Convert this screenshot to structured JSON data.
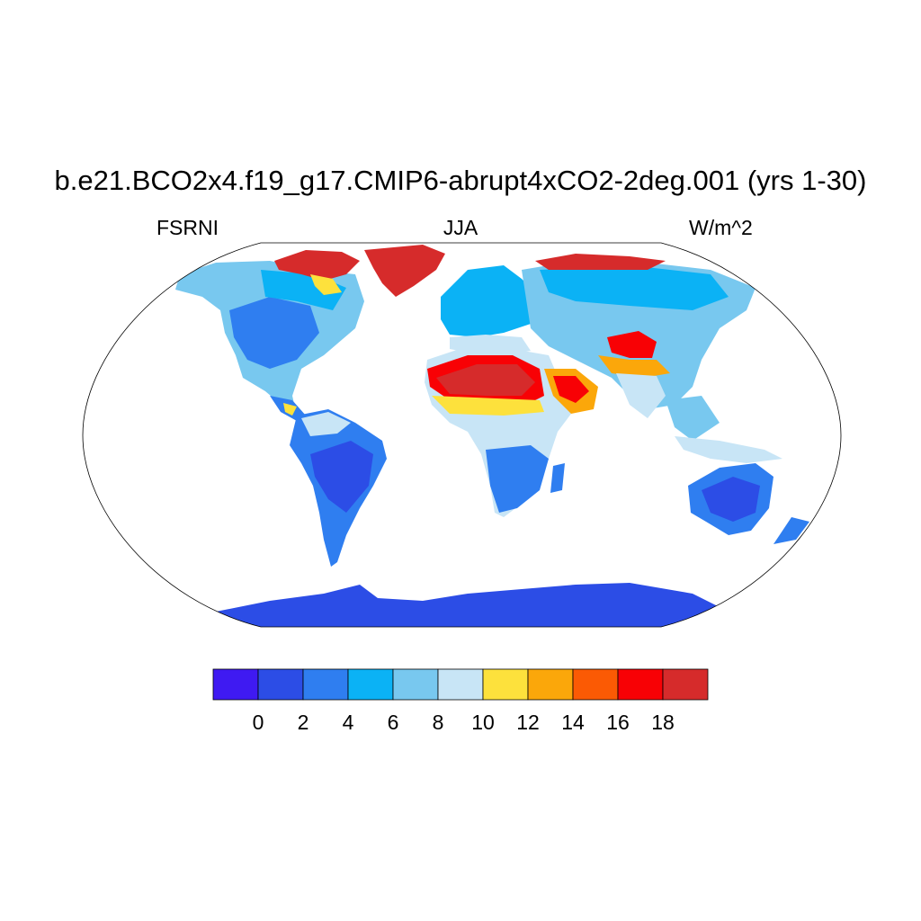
{
  "title": "b.e21.BCO2x4.f19_g17.CMIP6-abrupt4xCO2-2deg.001 (yrs 1-30)",
  "left_label": "FSRNI",
  "center_label": "JJA",
  "right_label": "W/m^2",
  "map": {
    "projection": "Robinson",
    "field": "FSRNI",
    "season": "JJA",
    "units": "W/m^2",
    "ocean_masked": true
  },
  "colorbar": {
    "colors": [
      "#3f1af2",
      "#2c4de6",
      "#2f7ef0",
      "#0bb2f5",
      "#78c8ef",
      "#c8e5f6",
      "#fde13c",
      "#fba70a",
      "#fb5a04",
      "#f80105",
      "#d62b2b"
    ],
    "labels": [
      "0",
      "2",
      "4",
      "6",
      "8",
      "10",
      "12",
      "14",
      "16",
      "18"
    ]
  },
  "palette": {
    "c0": "#3f1af2",
    "c1": "#2c4de6",
    "c2": "#2f7ef0",
    "c3": "#0bb2f5",
    "c4": "#78c8ef",
    "c5": "#c8e5f6",
    "c6": "#fde13c",
    "c7": "#fba70a",
    "c8": "#fb5a04",
    "c9": "#f80105",
    "c10": "#d62b2b"
  }
}
